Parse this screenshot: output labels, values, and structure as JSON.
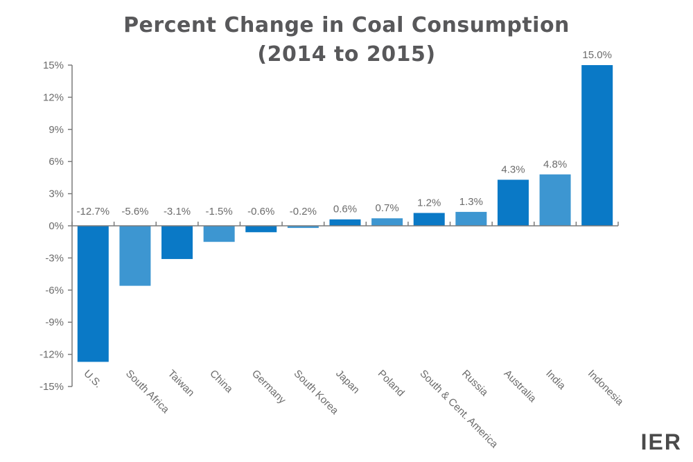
{
  "chart_data": {
    "type": "bar",
    "title": "Percent Change in Coal Consumption (2014 to 2015)",
    "title_lines": [
      "Percent Change in Coal Consumption",
      "(2014 to 2015)"
    ],
    "categories": [
      "U.S.",
      "South Africa",
      "Taiwan",
      "China",
      "Germany",
      "South Korea",
      "Japan",
      "Poland",
      "South & Cent. America",
      "Russia",
      "Australia",
      "India",
      "Indonesia"
    ],
    "values": [
      -12.7,
      -5.6,
      -3.1,
      -1.5,
      -0.6,
      -0.2,
      0.6,
      0.7,
      1.2,
      1.3,
      4.3,
      4.8,
      15.0
    ],
    "value_labels": [
      "-12.7%",
      "-5.6%",
      "-3.1%",
      "-1.5%",
      "-0.6%",
      "-0.2%",
      "0.6%",
      "0.7%",
      "1.2%",
      "1.3%",
      "4.3%",
      "4.8%",
      "15.0%"
    ],
    "ylim": [
      -15,
      15
    ],
    "yticks": [
      15,
      12,
      9,
      6,
      3,
      0,
      -3,
      -6,
      -9,
      -12,
      -15
    ],
    "ytick_labels": [
      "15%",
      "12%",
      "9%",
      "6%",
      "3%",
      "0%",
      "-3%",
      "-6%",
      "-9%",
      "-12%",
      "-15%"
    ],
    "xlabel": "",
    "ylabel": "",
    "grid": false,
    "legend": "none",
    "colors": {
      "dark": "#0a79c6",
      "light": "#3d96d1"
    }
  },
  "logo": {
    "text": "IER"
  }
}
